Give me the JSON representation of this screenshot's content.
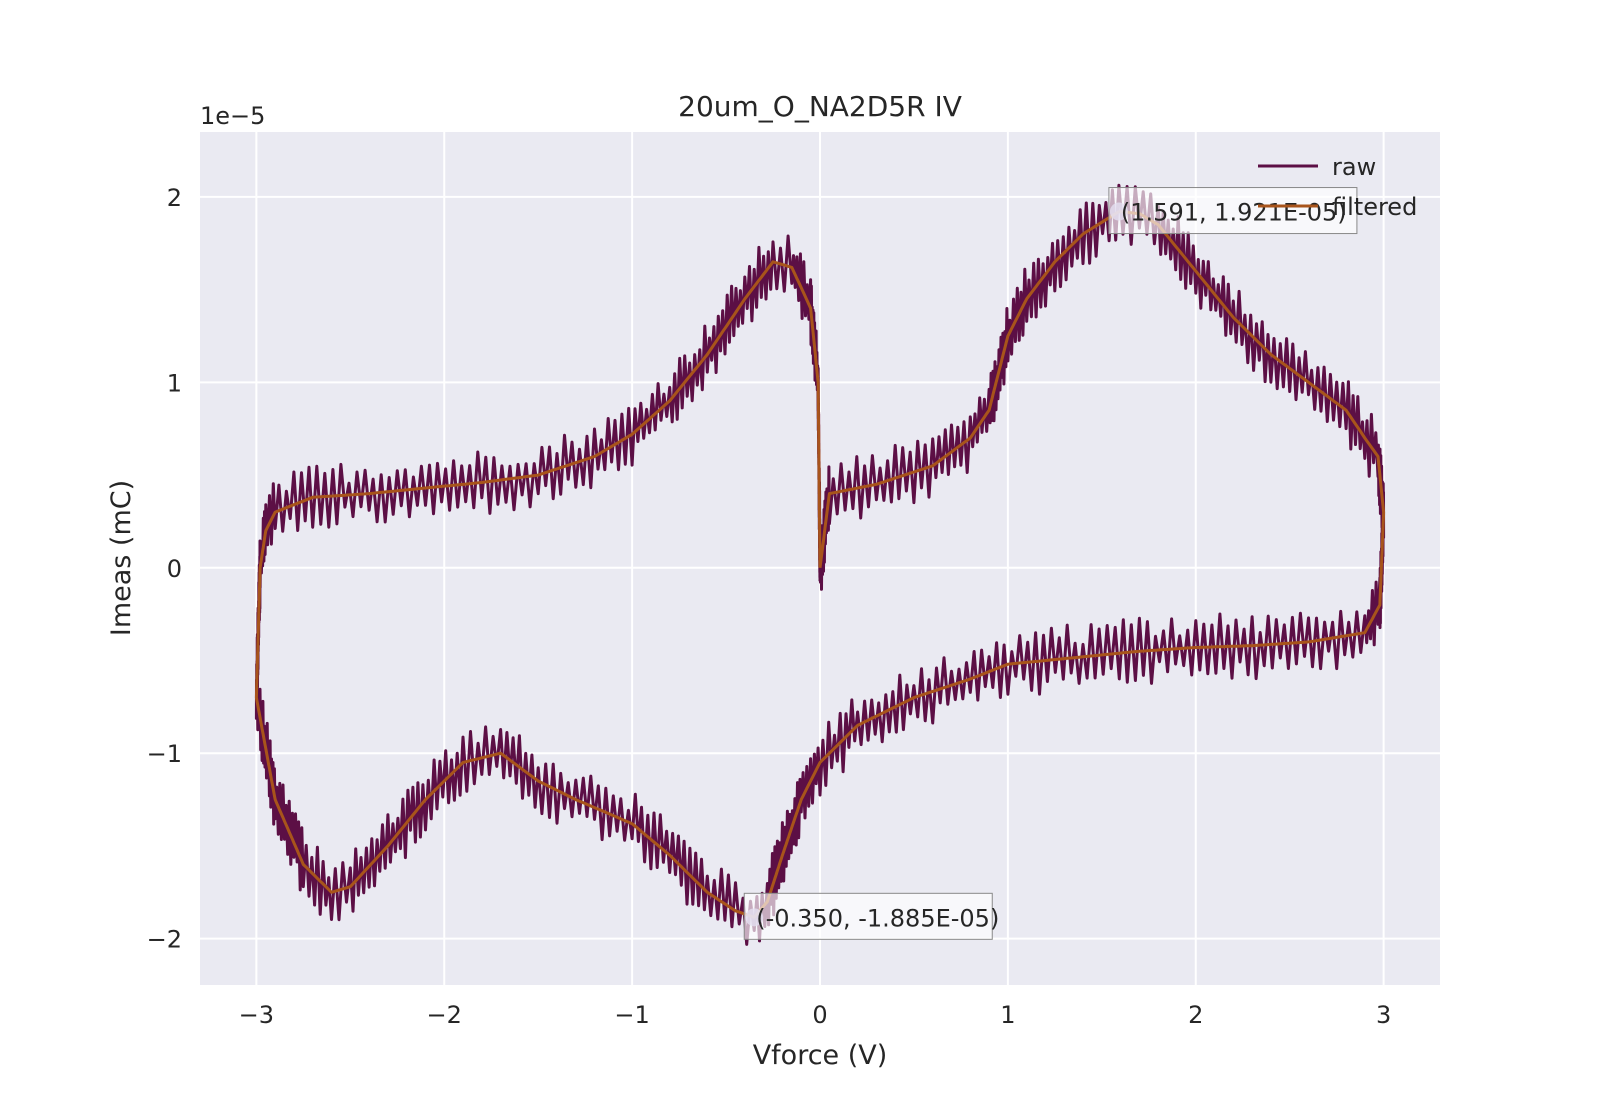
{
  "chart_data": {
    "type": "line",
    "title": "20um_O_NA2D5R IV",
    "xlabel": "Vforce (V)",
    "ylabel": "Imeas (mC)",
    "y_offset_text": "1e−5",
    "xlim": [
      -3.3,
      3.3
    ],
    "ylim": [
      -2.25e-05,
      2.35e-05
    ],
    "xticks": [
      -3,
      -2,
      -1,
      0,
      1,
      2,
      3
    ],
    "xtick_labels": [
      "−3",
      "−2",
      "−1",
      "0",
      "1",
      "2",
      "3"
    ],
    "yticks": [
      -2e-05,
      -1e-05,
      0,
      1e-05,
      2e-05
    ],
    "ytick_labels": [
      "−2",
      "−1",
      "0",
      "1",
      "2"
    ],
    "grid": true,
    "legend_position": "top-right",
    "series": [
      {
        "name": "raw",
        "color": "#5c0f45",
        "role": "raw"
      },
      {
        "name": "filtered",
        "color": "#a8541b",
        "role": "filtered"
      }
    ],
    "filtered_sweep": [
      [
        0.0,
        0.0
      ],
      [
        0.05,
        4e-06
      ],
      [
        0.3,
        4.5e-06
      ],
      [
        0.6,
        5.5e-06
      ],
      [
        0.8,
        7e-06
      ],
      [
        0.9,
        8.5e-06
      ],
      [
        1.0,
        1.25e-05
      ],
      [
        1.1,
        1.45e-05
      ],
      [
        1.25,
        1.65e-05
      ],
      [
        1.4,
        1.8e-05
      ],
      [
        1.591,
        1.921e-05
      ],
      [
        1.7,
        1.91e-05
      ],
      [
        1.8,
        1.85e-05
      ],
      [
        2.0,
        1.6e-05
      ],
      [
        2.2,
        1.35e-05
      ],
      [
        2.4,
        1.15e-05
      ],
      [
        2.6,
        1e-05
      ],
      [
        2.8,
        8.5e-06
      ],
      [
        2.9,
        7e-06
      ],
      [
        2.97,
        6e-06
      ],
      [
        3.0,
        3e-06
      ],
      [
        2.98,
        -2e-06
      ],
      [
        2.9,
        -3.5e-06
      ],
      [
        2.6,
        -4e-06
      ],
      [
        2.3,
        -4.2e-06
      ],
      [
        2.0,
        -4.3e-06
      ],
      [
        1.7,
        -4.5e-06
      ],
      [
        1.4,
        -4.8e-06
      ],
      [
        1.0,
        -5.2e-06
      ],
      [
        0.8,
        -6e-06
      ],
      [
        0.5,
        -7e-06
      ],
      [
        0.2,
        -8.5e-06
      ],
      [
        0.0,
        -1.05e-05
      ],
      [
        -0.1,
        -1.25e-05
      ],
      [
        -0.2,
        -1.55e-05
      ],
      [
        -0.28,
        -1.8e-05
      ],
      [
        -0.35,
        -1.885e-05
      ],
      [
        -0.45,
        -1.85e-05
      ],
      [
        -0.6,
        -1.75e-05
      ],
      [
        -0.8,
        -1.55e-05
      ],
      [
        -1.0,
        -1.38e-05
      ],
      [
        -1.3,
        -1.25e-05
      ],
      [
        -1.5,
        -1.15e-05
      ],
      [
        -1.7,
        -1e-05
      ],
      [
        -1.9,
        -1.05e-05
      ],
      [
        -2.1,
        -1.25e-05
      ],
      [
        -2.3,
        -1.5e-05
      ],
      [
        -2.5,
        -1.72e-05
      ],
      [
        -2.6,
        -1.75e-05
      ],
      [
        -2.75,
        -1.6e-05
      ],
      [
        -2.9,
        -1.25e-05
      ],
      [
        -3.0,
        -7e-06
      ],
      [
        -2.98,
        0.0
      ],
      [
        -2.95,
        2e-06
      ],
      [
        -2.9,
        3e-06
      ],
      [
        -2.7,
        3.8e-06
      ],
      [
        -2.4,
        4e-06
      ],
      [
        -2.1,
        4.3e-06
      ],
      [
        -1.8,
        4.6e-06
      ],
      [
        -1.5,
        5e-06
      ],
      [
        -1.2,
        6e-06
      ],
      [
        -1.0,
        7.2e-06
      ],
      [
        -0.8,
        9e-06
      ],
      [
        -0.6,
        1.15e-05
      ],
      [
        -0.4,
        1.45e-05
      ],
      [
        -0.25,
        1.65e-05
      ],
      [
        -0.15,
        1.62e-05
      ],
      [
        -0.05,
        1.4e-05
      ],
      [
        -0.01,
        1e-05
      ],
      [
        0.0,
        0.0
      ]
    ],
    "raw_noise_amplitude": 2e-06,
    "annotations": [
      {
        "text": "(1.591, 1.921E-05)",
        "x": 1.591,
        "y": 1.921e-05
      },
      {
        "text": "(-0.350, -1.885E-05)",
        "x": -0.35,
        "y": -1.885e-05
      }
    ]
  }
}
